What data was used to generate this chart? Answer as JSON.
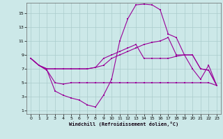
{
  "bg_color": "#cce8e8",
  "grid_color": "#aacccc",
  "line_color": "#990099",
  "xlabel": "Windchill (Refroidissement éolien,°C)",
  "xlim": [
    -0.5,
    23.5
  ],
  "ylim": [
    0.5,
    16.5
  ],
  "xticks": [
    0,
    1,
    2,
    3,
    4,
    5,
    6,
    7,
    8,
    9,
    10,
    11,
    12,
    13,
    14,
    15,
    16,
    17,
    18,
    19,
    20,
    21,
    22,
    23
  ],
  "yticks": [
    1,
    3,
    5,
    7,
    9,
    11,
    13,
    15
  ],
  "line_min_x": [
    0,
    1,
    2,
    3,
    4,
    5,
    6,
    7,
    8,
    9,
    10,
    11,
    12,
    13,
    14,
    15,
    16,
    17,
    18,
    19,
    20,
    21,
    22,
    23
  ],
  "line_min_y": [
    8.5,
    7.5,
    6.8,
    5.0,
    4.8,
    5.0,
    5.0,
    5.0,
    5.0,
    5.0,
    5.0,
    5.0,
    5.0,
    5.0,
    5.0,
    5.0,
    5.0,
    5.0,
    5.0,
    5.0,
    5.0,
    5.0,
    5.0,
    4.6
  ],
  "line_max_x": [
    0,
    1,
    2,
    3,
    4,
    5,
    6,
    7,
    8,
    9,
    10,
    11,
    12,
    13,
    14,
    15,
    16,
    17,
    18,
    19,
    20,
    21,
    22,
    23
  ],
  "line_max_y": [
    8.5,
    7.5,
    6.8,
    3.8,
    3.2,
    2.8,
    2.5,
    1.8,
    1.5,
    3.2,
    5.5,
    11.0,
    14.2,
    16.2,
    16.3,
    16.2,
    15.5,
    12.0,
    11.5,
    9.0,
    7.0,
    5.5,
    7.5,
    4.6
  ],
  "line_avg_x": [
    0,
    1,
    2,
    3,
    4,
    5,
    6,
    7,
    8,
    9,
    10,
    11,
    12,
    13,
    14,
    15,
    16,
    17,
    18,
    19,
    20,
    21,
    22,
    23
  ],
  "line_avg_y": [
    8.5,
    7.5,
    7.0,
    7.0,
    7.0,
    7.0,
    7.0,
    7.0,
    7.2,
    7.5,
    8.5,
    9.0,
    9.5,
    10.0,
    10.5,
    10.8,
    11.0,
    11.5,
    9.0,
    9.0,
    9.0,
    7.0,
    6.8,
    4.6
  ],
  "line_mid_x": [
    0,
    1,
    2,
    3,
    4,
    5,
    6,
    7,
    8,
    9,
    10,
    11,
    12,
    13,
    14,
    15,
    16,
    17,
    18,
    19,
    20,
    21,
    22,
    23
  ],
  "line_mid_y": [
    8.5,
    7.5,
    7.0,
    7.0,
    7.0,
    7.0,
    7.0,
    7.0,
    7.2,
    8.5,
    9.0,
    9.5,
    10.0,
    10.5,
    8.5,
    8.5,
    8.5,
    8.5,
    8.8,
    9.0,
    9.0,
    7.0,
    6.8,
    4.6
  ]
}
